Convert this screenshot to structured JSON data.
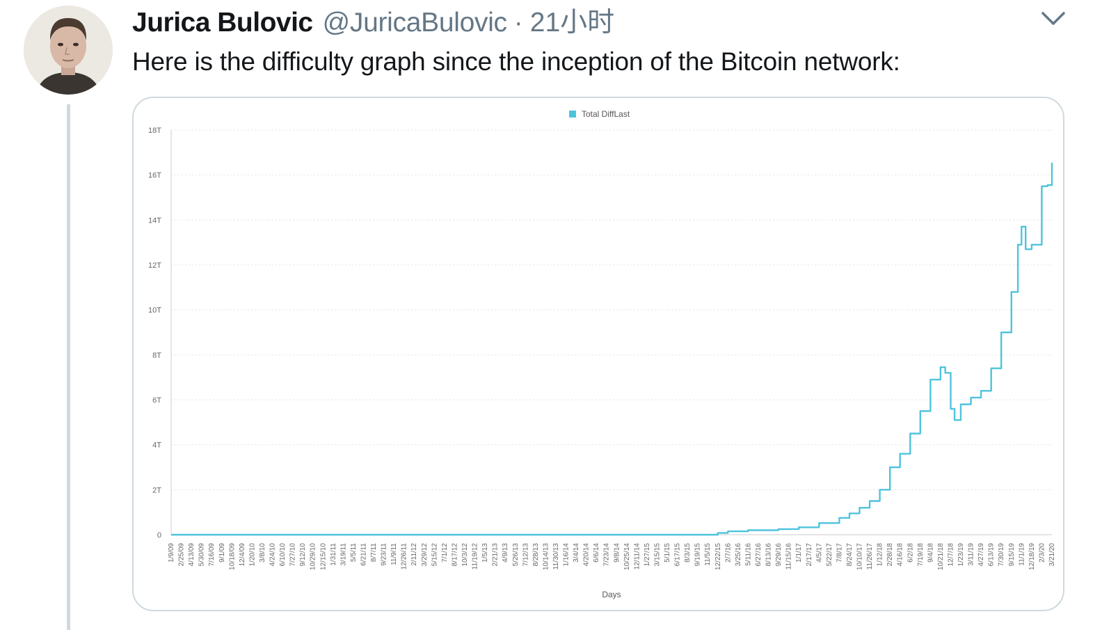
{
  "tweet": {
    "author_name": "Jurica Bulovic",
    "handle": "@JuricaBulovic",
    "separator": "·",
    "time": "21小时",
    "text": "Here is the difficulty graph since the inception of the Bitcoin network:",
    "icons": {
      "avatar": "user-avatar-photo",
      "menu": "chevron-down-icon"
    }
  },
  "chart_data": {
    "type": "line",
    "title": "",
    "xlabel": "Days",
    "ylabel": "",
    "legend": {
      "position": "top-center",
      "entries": [
        "Total DiffLast"
      ]
    },
    "grid": true,
    "ylim": [
      0,
      18
    ],
    "y_ticks": [
      "0",
      "2T",
      "4T",
      "6T",
      "8T",
      "10T",
      "12T",
      "14T",
      "16T",
      "18T"
    ],
    "y_unit": "T",
    "x_tick_labels": [
      "1/9/09",
      "2/25/09",
      "4/13/09",
      "5/30/09",
      "7/16/09",
      "9/1/09",
      "10/18/09",
      "12/4/09",
      "1/20/10",
      "3/8/10",
      "4/24/10",
      "6/10/10",
      "7/27/10",
      "9/12/10",
      "10/29/10",
      "12/15/10",
      "1/31/11",
      "3/19/11",
      "5/5/11",
      "6/21/11",
      "8/7/11",
      "9/23/11",
      "11/9/11",
      "12/26/11",
      "2/11/12",
      "3/29/12",
      "5/15/12",
      "7/1/12",
      "8/17/12",
      "10/3/12",
      "11/19/12",
      "1/5/13",
      "2/21/13",
      "4/9/13",
      "5/26/13",
      "7/12/13",
      "8/28/13",
      "10/14/13",
      "11/30/13",
      "1/16/14",
      "3/4/14",
      "4/20/14",
      "6/6/14",
      "7/23/14",
      "9/8/14",
      "10/25/14",
      "12/11/14",
      "1/27/15",
      "3/15/15",
      "5/1/15",
      "6/17/15",
      "8/3/15",
      "9/19/15",
      "11/5/15",
      "12/22/15",
      "2/7/16",
      "3/25/16",
      "5/11/16",
      "6/27/16",
      "8/13/16",
      "9/29/16",
      "11/15/16",
      "1/1/17",
      "2/17/17",
      "4/5/17",
      "5/22/17",
      "7/8/17",
      "8/24/17",
      "10/10/17",
      "11/26/17",
      "1/12/18",
      "2/28/18",
      "4/16/18",
      "6/2/18",
      "7/19/18",
      "9/4/18",
      "10/21/18",
      "12/7/18",
      "1/23/19",
      "3/11/19",
      "4/27/19",
      "6/13/19",
      "7/30/19",
      "9/15/19",
      "11/1/19",
      "12/18/19",
      "2/3/20",
      "3/21/20"
    ],
    "series": [
      {
        "name": "Total DiffLast",
        "color": "#4ec3dc",
        "points": [
          [
            "1/9/09",
            0
          ],
          [
            "12/22/15",
            0.08
          ],
          [
            "2/7/16",
            0.15
          ],
          [
            "5/11/16",
            0.2
          ],
          [
            "9/29/16",
            0.25
          ],
          [
            "1/1/17",
            0.33
          ],
          [
            "4/5/17",
            0.52
          ],
          [
            "7/8/17",
            0.75
          ],
          [
            "8/24/17",
            0.95
          ],
          [
            "10/10/17",
            1.2
          ],
          [
            "11/26/17",
            1.5
          ],
          [
            "1/12/18",
            2.0
          ],
          [
            "2/28/18",
            3.0
          ],
          [
            "4/16/18",
            3.6
          ],
          [
            "6/2/18",
            4.5
          ],
          [
            "7/19/18",
            5.5
          ],
          [
            "9/4/18",
            6.9
          ],
          [
            "10/21/18",
            7.45
          ],
          [
            "11/12/18",
            7.2
          ],
          [
            "12/7/18",
            5.6
          ],
          [
            "12/25/18",
            5.1
          ],
          [
            "1/23/19",
            5.8
          ],
          [
            "3/11/19",
            6.1
          ],
          [
            "4/27/19",
            6.4
          ],
          [
            "6/13/19",
            7.4
          ],
          [
            "7/30/19",
            9.0
          ],
          [
            "9/15/19",
            10.8
          ],
          [
            "10/15/19",
            12.9
          ],
          [
            "11/1/19",
            13.7
          ],
          [
            "11/20/19",
            12.7
          ],
          [
            "12/18/19",
            12.9
          ],
          [
            "2/3/20",
            15.5
          ],
          [
            "3/1/20",
            15.55
          ],
          [
            "3/21/20",
            16.55
          ]
        ]
      }
    ]
  }
}
